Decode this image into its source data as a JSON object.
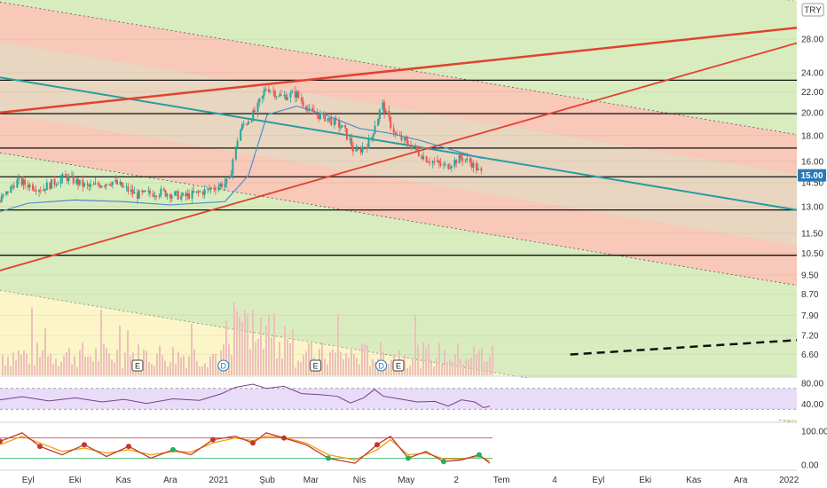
{
  "currency": "TRY",
  "price_tag": "15.00",
  "colors": {
    "red_zone": "#f8c8b8",
    "green_zone": "#d9ecbf",
    "yellow_zone": "#fbf5c8",
    "trend_red": "#e0432e",
    "trend_teal": "#2a9ca0",
    "level_line": "#111111",
    "candle_up": "#26a69a",
    "candle_down": "#ef5350",
    "ma_blue": "#4a90c8",
    "rsi_band": "#e8dcf8",
    "rsi_line": "#7a3f8a",
    "stoch_k": "#c0392b",
    "stoch_d": "#f39c12",
    "volume": "#ecc0bc",
    "tag_bg": "#2a7ab8"
  },
  "events": [
    {
      "label": "E",
      "kind": "earnings",
      "date": "2020-11-10"
    },
    {
      "label": "D",
      "kind": "dividend",
      "date": "2021-01-04"
    },
    {
      "label": "E",
      "kind": "earnings",
      "date": "2021-03-04"
    },
    {
      "label": "D",
      "kind": "dividend",
      "date": "2021-04-15"
    },
    {
      "label": "E",
      "kind": "earnings",
      "date": "2021-04-26"
    }
  ],
  "chart_data": {
    "type": "candlestick",
    "title": "",
    "y_scale": "log",
    "ylim": [
      6.0,
      33.5
    ],
    "y_ticks": [
      "28.00",
      "24.00",
      "22.00",
      "20.00",
      "18.00",
      "16.00",
      "14.50",
      "13.00",
      "11.50",
      "10.50",
      "9.50",
      "8.70",
      "7.90",
      "7.20",
      "6.60"
    ],
    "y_tick_values": [
      28.0,
      24.0,
      22.0,
      20.0,
      18.0,
      16.0,
      14.5,
      13.0,
      11.5,
      10.5,
      9.5,
      8.7,
      7.9,
      7.2,
      6.6
    ],
    "x_ticks": [
      "Eyl",
      "Eki",
      "Kas",
      "Ara",
      "2021",
      "Şub",
      "Mar",
      "Nis",
      "May",
      "2",
      "Tem",
      "4",
      "Eyl",
      "Eki",
      "Kas",
      "Ara",
      "2022"
    ],
    "x_tick_dates": [
      "2020-09-01",
      "2020-10-01",
      "2020-11-01",
      "2020-12-01",
      "2021-01-01",
      "2021-02-01",
      "2021-03-01",
      "2021-04-01",
      "2021-05-01",
      "2021-06-02",
      "2021-07-01",
      "2021-08-04",
      "2021-09-01",
      "2021-10-01",
      "2021-11-01",
      "2021-12-01",
      "2022-01-01"
    ],
    "x_range": [
      "2020-08-14",
      "2022-01-06"
    ],
    "last_price": 15.0,
    "price_path": [
      [
        "2020-08-14",
        13.3
      ],
      [
        "2020-08-25",
        14.6
      ],
      [
        "2020-09-10",
        14.1
      ],
      [
        "2020-09-25",
        14.9
      ],
      [
        "2020-10-10",
        14.2
      ],
      [
        "2020-10-25",
        14.6
      ],
      [
        "2020-11-10",
        13.7
      ],
      [
        "2020-11-25",
        13.9
      ],
      [
        "2020-12-10",
        13.6
      ],
      [
        "2020-12-25",
        14.0
      ],
      [
        "2021-01-08",
        14.6
      ],
      [
        "2021-01-15",
        18.5
      ],
      [
        "2021-01-25",
        20.1
      ],
      [
        "2021-02-01",
        22.5
      ],
      [
        "2021-02-10",
        21.5
      ],
      [
        "2021-02-20",
        21.8
      ],
      [
        "2021-03-01",
        20.0
      ],
      [
        "2021-03-12",
        19.5
      ],
      [
        "2021-03-22",
        18.6
      ],
      [
        "2021-03-30",
        16.6
      ],
      [
        "2021-04-08",
        17.5
      ],
      [
        "2021-04-16",
        20.7
      ],
      [
        "2021-04-24",
        18.1
      ],
      [
        "2021-05-04",
        17.2
      ],
      [
        "2021-05-14",
        16.2
      ],
      [
        "2021-05-26",
        15.6
      ],
      [
        "2021-06-06",
        16.3
      ],
      [
        "2021-06-13",
        15.8
      ],
      [
        "2021-06-19",
        15.0
      ]
    ],
    "ma_path": [
      [
        "2020-08-14",
        12.7
      ],
      [
        "2020-09-01",
        13.2
      ],
      [
        "2020-10-01",
        13.4
      ],
      [
        "2020-11-01",
        13.3
      ],
      [
        "2020-12-01",
        13.1
      ],
      [
        "2021-01-05",
        13.3
      ],
      [
        "2021-01-20",
        15.0
      ],
      [
        "2021-02-01",
        19.8
      ],
      [
        "2021-02-20",
        20.6
      ],
      [
        "2021-03-10",
        19.8
      ],
      [
        "2021-04-01",
        18.6
      ],
      [
        "2021-04-20",
        18.2
      ],
      [
        "2021-05-10",
        17.6
      ],
      [
        "2021-06-01",
        16.8
      ],
      [
        "2021-06-19",
        16.2
      ]
    ],
    "horizontal_levels": [
      23.2,
      19.9,
      17.0,
      14.9,
      12.8,
      10.4
    ],
    "lines": [
      {
        "name": "teal trend",
        "from": [
          "2020-08-14",
          23.5
        ],
        "to": [
          "2022-01-06",
          12.8
        ]
      },
      {
        "name": "red trend upper",
        "from": [
          "2020-08-14",
          20.0
        ],
        "to": [
          "2022-01-06",
          29.5
        ]
      },
      {
        "name": "red trend lower",
        "from": [
          "2020-08-14",
          9.7
        ],
        "to": [
          "2022-01-06",
          27.5
        ]
      },
      {
        "name": "dashed projection",
        "from": [
          "2021-08-14",
          6.6
        ],
        "to": [
          "2022-01-06",
          7.05
        ]
      }
    ],
    "rsi": {
      "ticks": [
        "80.00",
        "40.00"
      ],
      "tick_values": [
        80,
        40
      ],
      "band": [
        30,
        70
      ],
      "path": [
        [
          0,
          48
        ],
        [
          25,
          54
        ],
        [
          55,
          46
        ],
        [
          85,
          52
        ],
        [
          115,
          44
        ],
        [
          140,
          49
        ],
        [
          165,
          41
        ],
        [
          195,
          50
        ],
        [
          225,
          47
        ],
        [
          250,
          60
        ],
        [
          265,
          72
        ],
        [
          285,
          78
        ],
        [
          300,
          70
        ],
        [
          320,
          74
        ],
        [
          340,
          60
        ],
        [
          360,
          58
        ],
        [
          380,
          55
        ],
        [
          395,
          42
        ],
        [
          410,
          52
        ],
        [
          422,
          68
        ],
        [
          432,
          55
        ],
        [
          450,
          50
        ],
        [
          470,
          44
        ],
        [
          490,
          45
        ],
        [
          505,
          36
        ],
        [
          520,
          48
        ],
        [
          535,
          44
        ],
        [
          545,
          33
        ],
        [
          552,
          36
        ]
      ]
    },
    "stochastic": {
      "ticks": [
        "100.00",
        "0.00"
      ],
      "tick_values": [
        100,
        0
      ],
      "k_path": [
        [
          0,
          70
        ],
        [
          25,
          95
        ],
        [
          45,
          55
        ],
        [
          70,
          30
        ],
        [
          95,
          60
        ],
        [
          120,
          25
        ],
        [
          145,
          55
        ],
        [
          170,
          20
        ],
        [
          195,
          45
        ],
        [
          215,
          30
        ],
        [
          240,
          75
        ],
        [
          265,
          85
        ],
        [
          285,
          65
        ],
        [
          300,
          95
        ],
        [
          320,
          80
        ],
        [
          345,
          60
        ],
        [
          370,
          20
        ],
        [
          400,
          5
        ],
        [
          425,
          60
        ],
        [
          440,
          85
        ],
        [
          460,
          20
        ],
        [
          480,
          40
        ],
        [
          500,
          10
        ],
        [
          520,
          15
        ],
        [
          540,
          30
        ],
        [
          552,
          5
        ]
      ],
      "d_path": [
        [
          0,
          60
        ],
        [
          25,
          85
        ],
        [
          45,
          65
        ],
        [
          70,
          40
        ],
        [
          95,
          50
        ],
        [
          120,
          35
        ],
        [
          145,
          45
        ],
        [
          170,
          30
        ],
        [
          195,
          40
        ],
        [
          215,
          38
        ],
        [
          240,
          65
        ],
        [
          265,
          80
        ],
        [
          285,
          72
        ],
        [
          300,
          85
        ],
        [
          320,
          82
        ],
        [
          345,
          65
        ],
        [
          370,
          30
        ],
        [
          400,
          15
        ],
        [
          425,
          45
        ],
        [
          440,
          75
        ],
        [
          460,
          30
        ],
        [
          480,
          35
        ],
        [
          500,
          18
        ],
        [
          520,
          18
        ],
        [
          540,
          25
        ],
        [
          552,
          12
        ]
      ]
    }
  }
}
